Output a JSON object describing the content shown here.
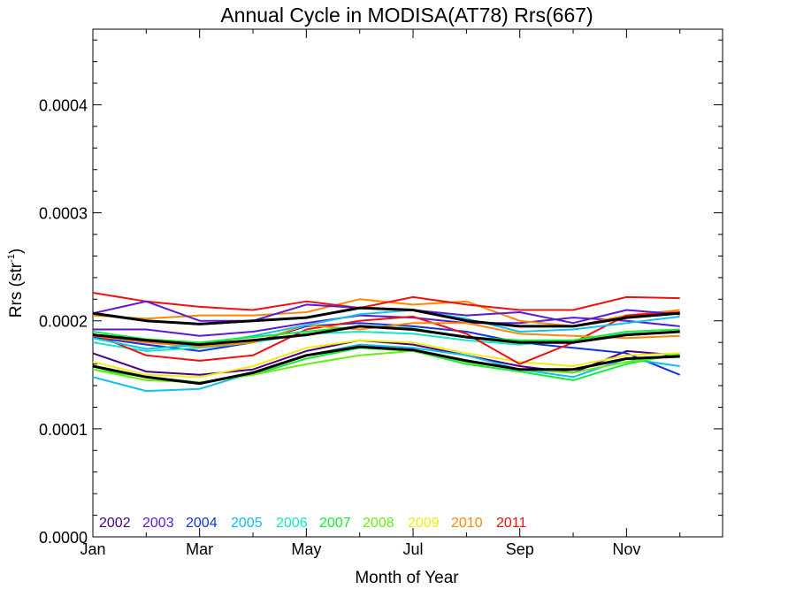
{
  "chart_data": {
    "type": "line",
    "title": "Annual Cycle in MODISA(AT78) Rrs(667)",
    "xlabel": "Month of Year",
    "ylabel_main": "Rrs (str",
    "ylabel_sup": "-1",
    "ylabel_end": ")",
    "xlim": [
      1,
      12.8
    ],
    "ylim": [
      0,
      0.00047
    ],
    "grid": false,
    "legend_position": "bottom-left",
    "x_ticks": [
      {
        "value": 1,
        "label": "Jan"
      },
      {
        "value": 3,
        "label": "Mar"
      },
      {
        "value": 5,
        "label": "May"
      },
      {
        "value": 7,
        "label": "Jul"
      },
      {
        "value": 9,
        "label": "Sep"
      },
      {
        "value": 11,
        "label": "Nov"
      }
    ],
    "y_ticks": [
      {
        "value": 0,
        "label": "0.0000"
      },
      {
        "value": 0.0001,
        "label": "0.0001"
      },
      {
        "value": 0.0002,
        "label": "0.0002"
      },
      {
        "value": 0.0003,
        "label": "0.0003"
      },
      {
        "value": 0.0004,
        "label": "0.0004"
      }
    ],
    "x": [
      1,
      2,
      3,
      4,
      5,
      6,
      7,
      8,
      9,
      10,
      11,
      12
    ],
    "series": [
      {
        "name": "2002",
        "color": "#4b0082",
        "values": [
          0.00017,
          0.000153,
          0.00015,
          0.000155,
          0.000172,
          0.000182,
          0.000178,
          0.000168,
          0.000158,
          0.000152,
          0.000172,
          0.000168
        ]
      },
      {
        "name": "2003",
        "color": "#5a1ad4",
        "values": [
          0.000192,
          0.000192,
          0.000186,
          0.00019,
          0.000198,
          0.000205,
          0.000203,
          0.000198,
          0.000198,
          0.000203,
          0.0002,
          0.000195
        ]
      },
      {
        "name": "2004",
        "color": "#1133e0",
        "values": [
          0.000185,
          0.000178,
          0.000172,
          0.00018,
          0.000195,
          0.000198,
          0.000195,
          0.00019,
          0.00018,
          0.000175,
          0.00017,
          0.00015
        ]
      },
      {
        "name": "2005",
        "color": "#11c0ee",
        "values": [
          0.000148,
          0.000135,
          0.000137,
          0.000152,
          0.000168,
          0.000178,
          0.000175,
          0.000168,
          0.000155,
          0.000148,
          0.000165,
          0.000158
        ]
      },
      {
        "name": "2006",
        "color": "#11e8c0",
        "values": [
          0.00018,
          0.000172,
          0.000175,
          0.00018,
          0.000188,
          0.00019,
          0.000188,
          0.000182,
          0.000178,
          0.000182,
          0.000188,
          0.00019
        ]
      },
      {
        "name": "2007",
        "color": "#11ee33",
        "values": [
          0.000155,
          0.000148,
          0.000143,
          0.00015,
          0.000165,
          0.000175,
          0.000172,
          0.00016,
          0.000153,
          0.000145,
          0.00016,
          0.00017
        ]
      },
      {
        "name": "2008",
        "color": "#66ee11",
        "values": [
          0.000155,
          0.000145,
          0.000143,
          0.00015,
          0.00016,
          0.000168,
          0.000172,
          0.000162,
          0.000155,
          0.000152,
          0.000162,
          0.000168
        ]
      },
      {
        "name": "2009",
        "color": "#eeee11",
        "values": [
          0.000162,
          0.00015,
          0.000148,
          0.000158,
          0.000175,
          0.000182,
          0.00018,
          0.00017,
          0.000162,
          0.000158,
          0.000168,
          0.00017
        ]
      },
      {
        "name": "2010",
        "color": "#ff8800",
        "values": [
          0.000205,
          0.000202,
          0.000205,
          0.000205,
          0.000208,
          0.00022,
          0.000215,
          0.000218,
          0.0002,
          0.000195,
          0.000205,
          0.00021
        ]
      },
      {
        "name": "2011",
        "color": "#ee1111",
        "values": [
          0.000226,
          0.000218,
          0.000213,
          0.00021,
          0.000218,
          0.000212,
          0.000222,
          0.000215,
          0.00021,
          0.00021,
          0.000222,
          0.000221
        ]
      },
      {
        "name": "",
        "color": "#ee1111",
        "values": [
          0.000188,
          0.000168,
          0.000163,
          0.000168,
          0.000192,
          0.0002,
          0.000204,
          0.000188,
          0.00016,
          0.00018,
          0.000205,
          0.000208
        ]
      },
      {
        "name": "",
        "color": "#ff8800",
        "values": [
          0.000186,
          0.00018,
          0.000176,
          0.00018,
          0.000196,
          0.000192,
          0.000198,
          0.000198,
          0.000188,
          0.000186,
          0.000184,
          0.000186
        ]
      },
      {
        "name": "",
        "color": "#11c0ee",
        "values": [
          0.000184,
          0.000174,
          0.000178,
          0.000186,
          0.000196,
          0.000206,
          0.00021,
          0.000202,
          0.00019,
          0.000192,
          0.000198,
          0.000204
        ]
      },
      {
        "name": "",
        "color": "#11ee33",
        "values": [
          0.00019,
          0.000183,
          0.00018,
          0.000185,
          0.00019,
          0.000195,
          0.000193,
          0.000185,
          0.000182,
          0.000182,
          0.00019,
          0.000192
        ]
      },
      {
        "name": "",
        "color": "#5a1ad4",
        "values": [
          0.000207,
          0.000218,
          0.0002,
          0.0002,
          0.000215,
          0.000212,
          0.00021,
          0.000205,
          0.000208,
          0.000198,
          0.00021,
          0.000206
        ]
      },
      {
        "name": "",
        "color": "#000000",
        "width": 3,
        "values": [
          0.000207,
          0.0002,
          0.000197,
          0.0002,
          0.000203,
          0.000212,
          0.00021,
          0.0002,
          0.000195,
          0.000195,
          0.000203,
          0.000207
        ]
      },
      {
        "name": "",
        "color": "#000000",
        "width": 3,
        "values": [
          0.000187,
          0.000182,
          0.000178,
          0.000182,
          0.000187,
          0.000195,
          0.000192,
          0.000185,
          0.00018,
          0.00018,
          0.000187,
          0.00019
        ]
      },
      {
        "name": "",
        "color": "#000000",
        "width": 3,
        "values": [
          0.000158,
          0.000148,
          0.000142,
          0.000152,
          0.000168,
          0.000176,
          0.000173,
          0.000163,
          0.000155,
          0.000155,
          0.000165,
          0.000167
        ]
      }
    ]
  }
}
